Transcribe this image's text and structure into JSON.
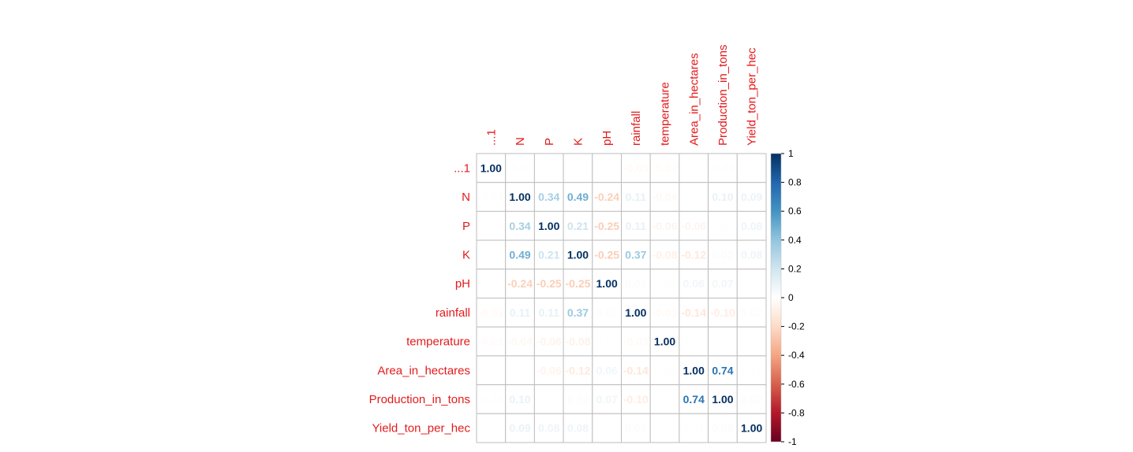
{
  "chart_data": {
    "type": "heatmap",
    "title": "",
    "variables": [
      "...1",
      "N",
      "P",
      "K",
      "pH",
      "rainfall",
      "temperature",
      "Area_in_hectares",
      "Production_in_tons",
      "Yield_ton_per_hec"
    ],
    "matrix": [
      [
        1.0,
        -0.01,
        0.0,
        0.0,
        0.0,
        -0.03,
        -0.02,
        0.0,
        -0.01,
        0.0
      ],
      [
        -0.01,
        1.0,
        0.34,
        0.49,
        -0.24,
        0.11,
        -0.04,
        0.0,
        0.1,
        0.09
      ],
      [
        0.0,
        0.34,
        1.0,
        0.21,
        -0.25,
        0.11,
        -0.06,
        -0.06,
        0.01,
        0.08
      ],
      [
        0.0,
        0.49,
        0.21,
        1.0,
        -0.25,
        0.37,
        -0.08,
        -0.12,
        0.02,
        0.08
      ],
      [
        0.0,
        -0.24,
        -0.25,
        -0.25,
        1.0,
        0.02,
        0.01,
        0.06,
        0.07,
        0.0
      ],
      [
        -0.03,
        0.11,
        0.11,
        0.37,
        0.02,
        1.0,
        -0.03,
        -0.14,
        -0.1,
        0.02
      ],
      [
        -0.02,
        -0.04,
        -0.06,
        -0.08,
        0.01,
        -0.03,
        1.0,
        0.01,
        0.0,
        0.0
      ],
      [
        0.0,
        0.0,
        -0.06,
        -0.12,
        0.06,
        -0.14,
        0.01,
        1.0,
        0.74,
        0.01
      ],
      [
        -0.01,
        0.1,
        0.01,
        0.02,
        0.07,
        -0.1,
        0.0,
        0.74,
        1.0,
        0.02
      ],
      [
        0.0,
        0.09,
        0.08,
        0.08,
        0.0,
        0.02,
        0.0,
        0.01,
        0.02,
        1.0
      ]
    ],
    "color_scale": {
      "range": [
        -1,
        1
      ],
      "ticks": [
        "1",
        "0.8",
        "0.6",
        "0.4",
        "0.2",
        "0",
        "-0.2",
        "-0.4",
        "-0.6",
        "-0.8",
        "-1"
      ],
      "colors": [
        "#67001f",
        "#b2182b",
        "#d6604d",
        "#f4a582",
        "#fddbc7",
        "#ffffff",
        "#d1e5f0",
        "#92c5de",
        "#4393c3",
        "#2166ac",
        "#053061"
      ]
    },
    "label_color": "#e31a1c",
    "grid_color": "#bdbdbd",
    "legend": "right",
    "xlabel": "",
    "ylabel": ""
  }
}
